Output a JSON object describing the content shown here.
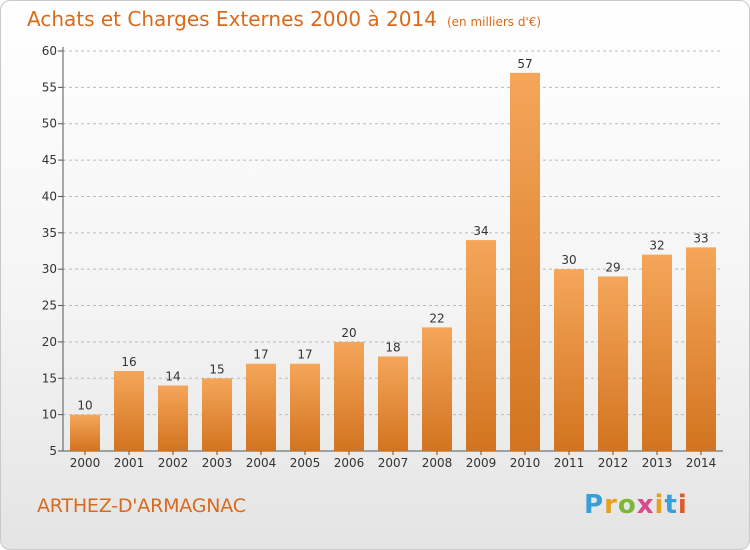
{
  "title": "Achats et Charges Externes 2000 à 2014",
  "unit": "(en milliers d'€)",
  "commune": "ARTHEZ-D'ARMAGNAC",
  "logo": {
    "letters": [
      "P",
      "r",
      "o",
      "x",
      "i",
      "t",
      "i"
    ],
    "colors": [
      "#3a9fd6",
      "#e8a020",
      "#7bb83a",
      "#d94a8c",
      "#e8a020",
      "#3a9fd6",
      "#e05a2a"
    ]
  },
  "colors": {
    "title": "#d96a1c",
    "bar_top": "#f5a65a",
    "bar_bottom": "#d2741f",
    "grid": "#bbbbbb",
    "text": "#333333"
  },
  "chart_data": {
    "type": "bar",
    "categories": [
      "2000",
      "2001",
      "2002",
      "2003",
      "2004",
      "2005",
      "2006",
      "2007",
      "2008",
      "2009",
      "2010",
      "2011",
      "2012",
      "2013",
      "2014"
    ],
    "values": [
      10,
      16,
      14,
      15,
      17,
      17,
      20,
      18,
      22,
      34,
      57,
      30,
      29,
      32,
      33
    ],
    "ylim": [
      5,
      60
    ],
    "yticks": [
      5,
      10,
      15,
      20,
      25,
      30,
      35,
      40,
      45,
      50,
      55,
      60
    ],
    "grid": "horizontal dashed",
    "data_labels": true
  }
}
